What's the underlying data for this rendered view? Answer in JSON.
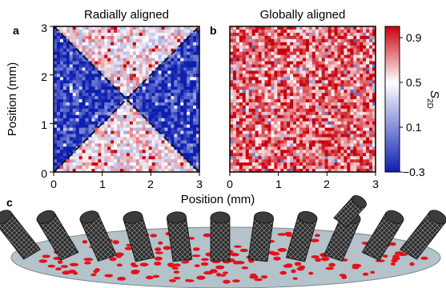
{
  "figure": {
    "panel_labels": {
      "a": "a",
      "b": "b",
      "c": "c"
    },
    "titles": {
      "left": "Radially aligned",
      "right": "Globally aligned"
    },
    "axes": {
      "xlabel": "Position (mm)",
      "ylabel": "Position (mm)",
      "x_ticks": [
        "0",
        "1",
        "2",
        "3"
      ],
      "y_ticks": [
        "0",
        "1",
        "2",
        "3"
      ]
    },
    "colorbar": {
      "label_main": "S",
      "label_sub": "2D",
      "ticks": [
        "0.9",
        "0.5",
        "0.1",
        "−0.3"
      ],
      "tick_values": [
        0.9,
        0.5,
        0.1,
        -0.3
      ],
      "range": [
        -0.3,
        1.0
      ],
      "colors": {
        "low": "#0d1fb0",
        "mid": "#ffffff",
        "high": "#c8000c"
      }
    }
  },
  "chart_data": [
    {
      "type": "heatmap",
      "title": "Radially aligned",
      "xlabel": "Position (mm)",
      "ylabel": "Position (mm)",
      "xlim": [
        0,
        3
      ],
      "ylim": [
        0,
        3
      ],
      "value_label": "S2D",
      "guides": [
        {
          "from": [
            0,
            3
          ],
          "to": [
            3,
            0
          ],
          "style": "dashed"
        },
        {
          "from": [
            0,
            0
          ],
          "to": [
            3,
            3
          ],
          "style": "dashed"
        }
      ],
      "regions": [
        {
          "sector": "top",
          "approx_value": 0.5
        },
        {
          "sector": "bottom",
          "approx_value": 0.5
        },
        {
          "sector": "left",
          "approx_value": -0.2
        },
        {
          "sector": "right",
          "approx_value": -0.2
        }
      ]
    },
    {
      "type": "heatmap",
      "title": "Globally aligned",
      "xlabel": "Position (mm)",
      "xlim": [
        0,
        3
      ],
      "ylim": [
        0,
        3
      ],
      "value_label": "S2D",
      "regions": [
        {
          "sector": "all",
          "approx_value": 0.8
        }
      ]
    }
  ],
  "illustration": {
    "tube_count": 11
  }
}
